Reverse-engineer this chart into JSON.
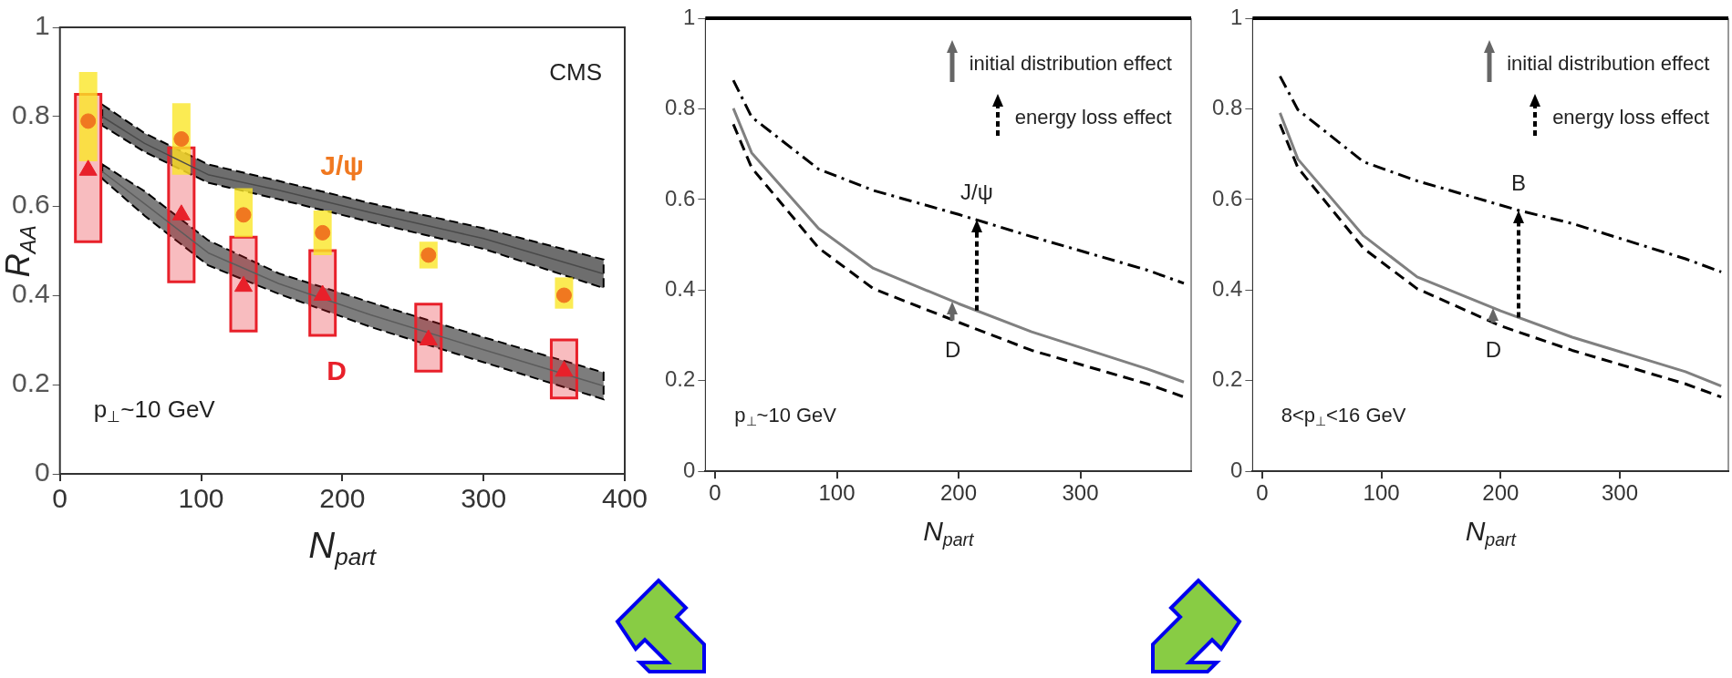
{
  "chart_data": [
    {
      "type": "scatter",
      "xlabel": "N$_{part}$",
      "ylabel": "R$_{AA}$",
      "xlim": [
        0,
        400
      ],
      "ylim": [
        0,
        1
      ],
      "xticks": [
        0,
        100,
        200,
        300,
        400
      ],
      "yticks": [
        0,
        0.2,
        0.4,
        0.6,
        0.8,
        1
      ],
      "annotations": [
        "CMS",
        "J/ψ",
        "D",
        "p$_{⊥}$~10 GeV"
      ],
      "series": [
        {
          "type": "line",
          "color": "#4a4a4a",
          "x": [
            30,
            60,
            105,
            155,
            220,
            300,
            385
          ],
          "values": [
            0.8,
            0.74,
            0.67,
            0.635,
            0.585,
            0.527,
            0.448
          ],
          "lower": [
            0.78,
            0.721,
            0.652,
            0.615,
            0.564,
            0.504,
            0.416
          ],
          "upper": [
            0.827,
            0.763,
            0.693,
            0.656,
            0.606,
            0.55,
            0.48
          ]
        },
        {
          "type": "line",
          "color": "#5c5c5c",
          "x": [
            30,
            60,
            105,
            155,
            220,
            300,
            385
          ],
          "values": [
            0.677,
            0.605,
            0.495,
            0.426,
            0.356,
            0.278,
            0.197
          ],
          "lower": [
            0.661,
            0.578,
            0.467,
            0.403,
            0.329,
            0.25,
            0.167
          ],
          "upper": [
            0.693,
            0.633,
            0.523,
            0.449,
            0.384,
            0.306,
            0.227
          ]
        },
        {
          "marker": "circle",
          "color": "#f07820",
          "x": [
            20,
            86,
            130,
            186,
            261,
            357
          ],
          "values": [
            0.79,
            0.75,
            0.58,
            0.54,
            0.49,
            0.4
          ],
          "errors": [
            [
              0.7,
              0.9
            ],
            [
              0.67,
              0.83
            ],
            [
              0.53,
              0.64
            ],
            [
              0.49,
              0.59
            ],
            [
              0.46,
              0.52
            ],
            [
              0.37,
              0.44
            ]
          ]
        },
        {
          "marker": "triangle",
          "color": "#e8202a",
          "x": [
            20,
            86,
            130,
            186,
            261,
            357
          ],
          "values": [
            0.68,
            0.58,
            0.42,
            0.4,
            0.3,
            0.23
          ],
          "errors": [
            [
              0.52,
              0.85
            ],
            [
              0.43,
              0.73
            ],
            [
              0.32,
              0.53
            ],
            [
              0.31,
              0.5
            ],
            [
              0.23,
              0.38
            ],
            [
              0.17,
              0.3
            ]
          ]
        }
      ]
    },
    {
      "type": "line",
      "xlabel": "N$_{part}$",
      "xlim": [
        -8,
        391
      ],
      "ylim": [
        0,
        1
      ],
      "xticks": [
        0,
        100,
        200,
        300
      ],
      "yticks": [
        0,
        0.2,
        0.4,
        0.6,
        0.8,
        1
      ],
      "marker": "none",
      "ref_lines": [
        {
          "axis": "y",
          "value": 1,
          "color": "#000000"
        }
      ],
      "annotations": [
        "initial distribution effect",
        "energy loss effect",
        {
          "text": "J/ψ",
          "x": 215,
          "y": 0.555
        },
        "D",
        "p$_{⊥}$~10 GeV"
      ],
      "series": [
        {
          "color": "#000000",
          "line_style": "dashdot",
          "x": [
            15,
            30,
            85,
            130,
            200,
            260,
            355,
            385
          ],
          "values": [
            0.863,
            0.782,
            0.667,
            0.62,
            0.567,
            0.518,
            0.444,
            0.415
          ]
        },
        {
          "color": "#808080",
          "line_style": "solid",
          "x": [
            15,
            30,
            85,
            130,
            200,
            260,
            355,
            385
          ],
          "values": [
            0.801,
            0.703,
            0.536,
            0.448,
            0.37,
            0.308,
            0.226,
            0.197
          ]
        },
        {
          "color": "#000000",
          "line_style": "dashed",
          "x": [
            15,
            30,
            85,
            130,
            200,
            260,
            355,
            385
          ],
          "values": [
            0.766,
            0.67,
            0.493,
            0.403,
            0.329,
            0.267,
            0.193,
            0.164
          ]
        }
      ]
    },
    {
      "type": "line",
      "xlabel": "N$_{part}$",
      "xlim": [
        -8,
        391
      ],
      "ylim": [
        0,
        1
      ],
      "xticks": [
        0,
        100,
        200,
        300
      ],
      "yticks": [
        0,
        0.2,
        0.4,
        0.6,
        0.8,
        1
      ],
      "marker": "none",
      "ref_lines": [
        {
          "axis": "y",
          "value": 1,
          "color": "#000000"
        }
      ],
      "annotations": [
        "initial distribution effect",
        "energy loss effect",
        {
          "text": "B",
          "x": 215,
          "y": 0.576
        },
        "D",
        "8<p$_{⊥}$<16 GeV"
      ],
      "series": [
        {
          "color": "#000000",
          "line_style": "dashdot",
          "x": [
            15,
            30,
            85,
            130,
            215,
            260,
            355,
            385
          ],
          "values": [
            0.872,
            0.798,
            0.683,
            0.641,
            0.576,
            0.547,
            0.469,
            0.44
          ]
        },
        {
          "color": "#808080",
          "line_style": "solid",
          "x": [
            15,
            30,
            85,
            130,
            200,
            260,
            355,
            385
          ],
          "values": [
            0.791,
            0.689,
            0.52,
            0.429,
            0.354,
            0.296,
            0.22,
            0.188
          ]
        },
        {
          "color": "#000000",
          "line_style": "dashed",
          "x": [
            15,
            30,
            85,
            130,
            200,
            260,
            355,
            385
          ],
          "values": [
            0.766,
            0.67,
            0.492,
            0.403,
            0.321,
            0.267,
            0.193,
            0.164
          ]
        }
      ]
    }
  ]
}
